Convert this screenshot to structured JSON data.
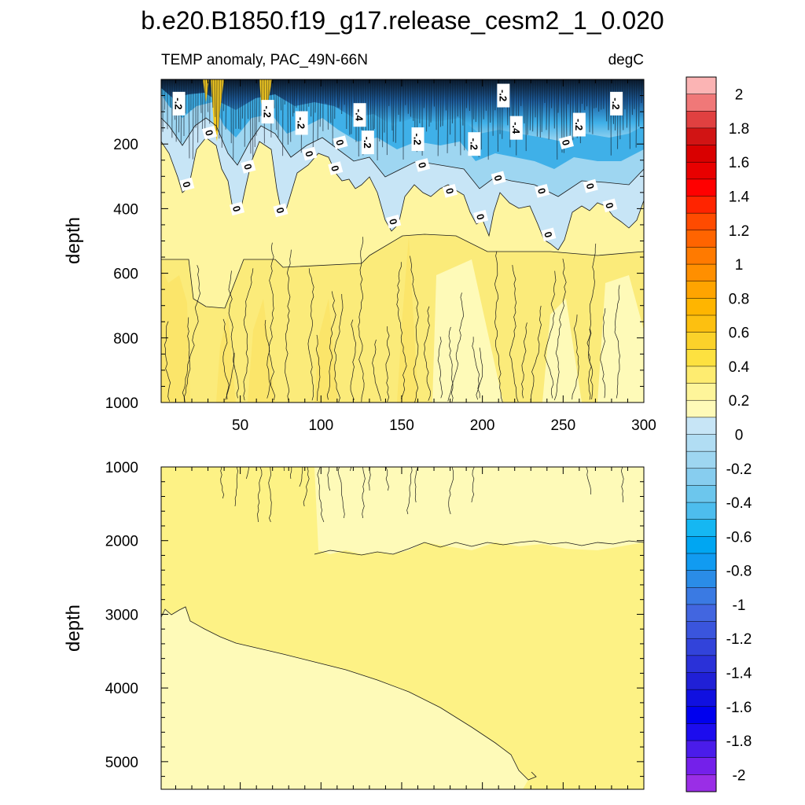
{
  "chart_data": {
    "type": "heatmap",
    "title": "b.e20.B1850.f19_g17.release_cesm2_1_0.020",
    "subtitle_left": "TEMP anomaly, PAC_49N-66N",
    "subtitle_right": "degC",
    "colors": {
      "neg_deep": "#0b1e33",
      "neg_strong": "#1f8fdc",
      "neg_mid": "#67c3ee",
      "neg_weak": "#c7e5f6",
      "zero_light": "#fefab8",
      "pos_weak": "#fdf285",
      "pos_mid": "#fbe86a",
      "pos_strong": "#f5c400",
      "contour_line": "#1a1a1a"
    },
    "panels": [
      {
        "name": "upper-ocean",
        "ylabel": "depth",
        "xlim": [
          1,
          300
        ],
        "ylim": [
          0,
          1000
        ],
        "x_ticks": [
          50,
          100,
          150,
          200,
          250,
          300
        ],
        "x_tick_labels": [
          "50",
          "100",
          "150",
          "200",
          "250",
          "300"
        ],
        "y_ticks": [
          200,
          400,
          600,
          800,
          1000
        ],
        "y_tick_labels": [
          "200",
          "400",
          "600",
          "800",
          "1000"
        ],
        "contour_labels": [
          {
            "text": "-.2",
            "x": 12,
            "y": 75
          },
          {
            "text": "0",
            "x": 31,
            "y": 165
          },
          {
            "text": "-.2",
            "x": 67,
            "y": 100
          },
          {
            "text": "0",
            "x": 17,
            "y": 325
          },
          {
            "text": "0",
            "x": 55,
            "y": 270
          },
          {
            "text": "0",
            "x": 48,
            "y": 400
          },
          {
            "text": "-.2",
            "x": 88,
            "y": 135
          },
          {
            "text": "0",
            "x": 93,
            "y": 230
          },
          {
            "text": "0",
            "x": 75,
            "y": 405
          },
          {
            "text": "0",
            "x": 112,
            "y": 195
          },
          {
            "text": "0",
            "x": 109,
            "y": 275
          },
          {
            "text": "-.4",
            "x": 124,
            "y": 110
          },
          {
            "text": "-.2",
            "x": 129,
            "y": 195
          },
          {
            "text": "-.2",
            "x": 160,
            "y": 185
          },
          {
            "text": "0",
            "x": 163,
            "y": 265
          },
          {
            "text": "0",
            "x": 145,
            "y": 440
          },
          {
            "text": "0",
            "x": 180,
            "y": 345
          },
          {
            "text": "-.2",
            "x": 195,
            "y": 200
          },
          {
            "text": "0",
            "x": 210,
            "y": 305
          },
          {
            "text": "-.2",
            "x": 213,
            "y": 50
          },
          {
            "text": "-.4",
            "x": 221,
            "y": 150
          },
          {
            "text": "0",
            "x": 199,
            "y": 425
          },
          {
            "text": "0",
            "x": 237,
            "y": 345
          },
          {
            "text": "0",
            "x": 241,
            "y": 480
          },
          {
            "text": "0",
            "x": 252,
            "y": 195
          },
          {
            "text": "-.2",
            "x": 260,
            "y": 140
          },
          {
            "text": "0",
            "x": 267,
            "y": 330
          },
          {
            "text": "0",
            "x": 279,
            "y": 390
          },
          {
            "text": "-.2",
            "x": 283,
            "y": 75
          }
        ]
      },
      {
        "name": "deep-ocean",
        "ylabel": "depth",
        "xlim": [
          1,
          300
        ],
        "ylim": [
          1000,
          5375
        ],
        "x_ticks": [
          50,
          100,
          150,
          200,
          250,
          300
        ],
        "y_ticks": [
          1000,
          2000,
          3000,
          4000,
          5000
        ],
        "y_tick_labels": [
          "1000",
          "2000",
          "3000",
          "4000",
          "5000"
        ],
        "contour_labels": []
      }
    ],
    "colorbar": {
      "levels": [
        "2",
        "1.8",
        "1.6",
        "1.4",
        "1.2",
        "1",
        "0.8",
        "0.6",
        "0.4",
        "0.2",
        "0",
        "-0.2",
        "-0.4",
        "-0.6",
        "-0.8",
        "-1",
        "-1.2",
        "-1.4",
        "-1.6",
        "-1.8",
        "-2"
      ],
      "colors": [
        "#fbb4b4",
        "#f07878",
        "#e04040",
        "#d11414",
        "#d90000",
        "#e80000",
        "#ff0000",
        "#ff2400",
        "#ff4b00",
        "#ff6400",
        "#ff7a00",
        "#ff8f00",
        "#ffa400",
        "#ffb500",
        "#fdc010",
        "#fbd22a",
        "#fde140",
        "#feec70",
        "#fef59a",
        "#fefab8",
        "#c7e5f6",
        "#b1ddf3",
        "#9ed6f1",
        "#87cdef",
        "#6cc6ed",
        "#4dbdee",
        "#15b7f2",
        "#00a6f2",
        "#119bf1",
        "#2a8ce7",
        "#3a7ae3",
        "#4266e0",
        "#3a55dd",
        "#3243da",
        "#2a31d8",
        "#2020d6",
        "#1010e0",
        "#0000ee",
        "#1c0cee",
        "#4a1cea",
        "#7420ea",
        "#9a2ee6"
      ]
    }
  }
}
